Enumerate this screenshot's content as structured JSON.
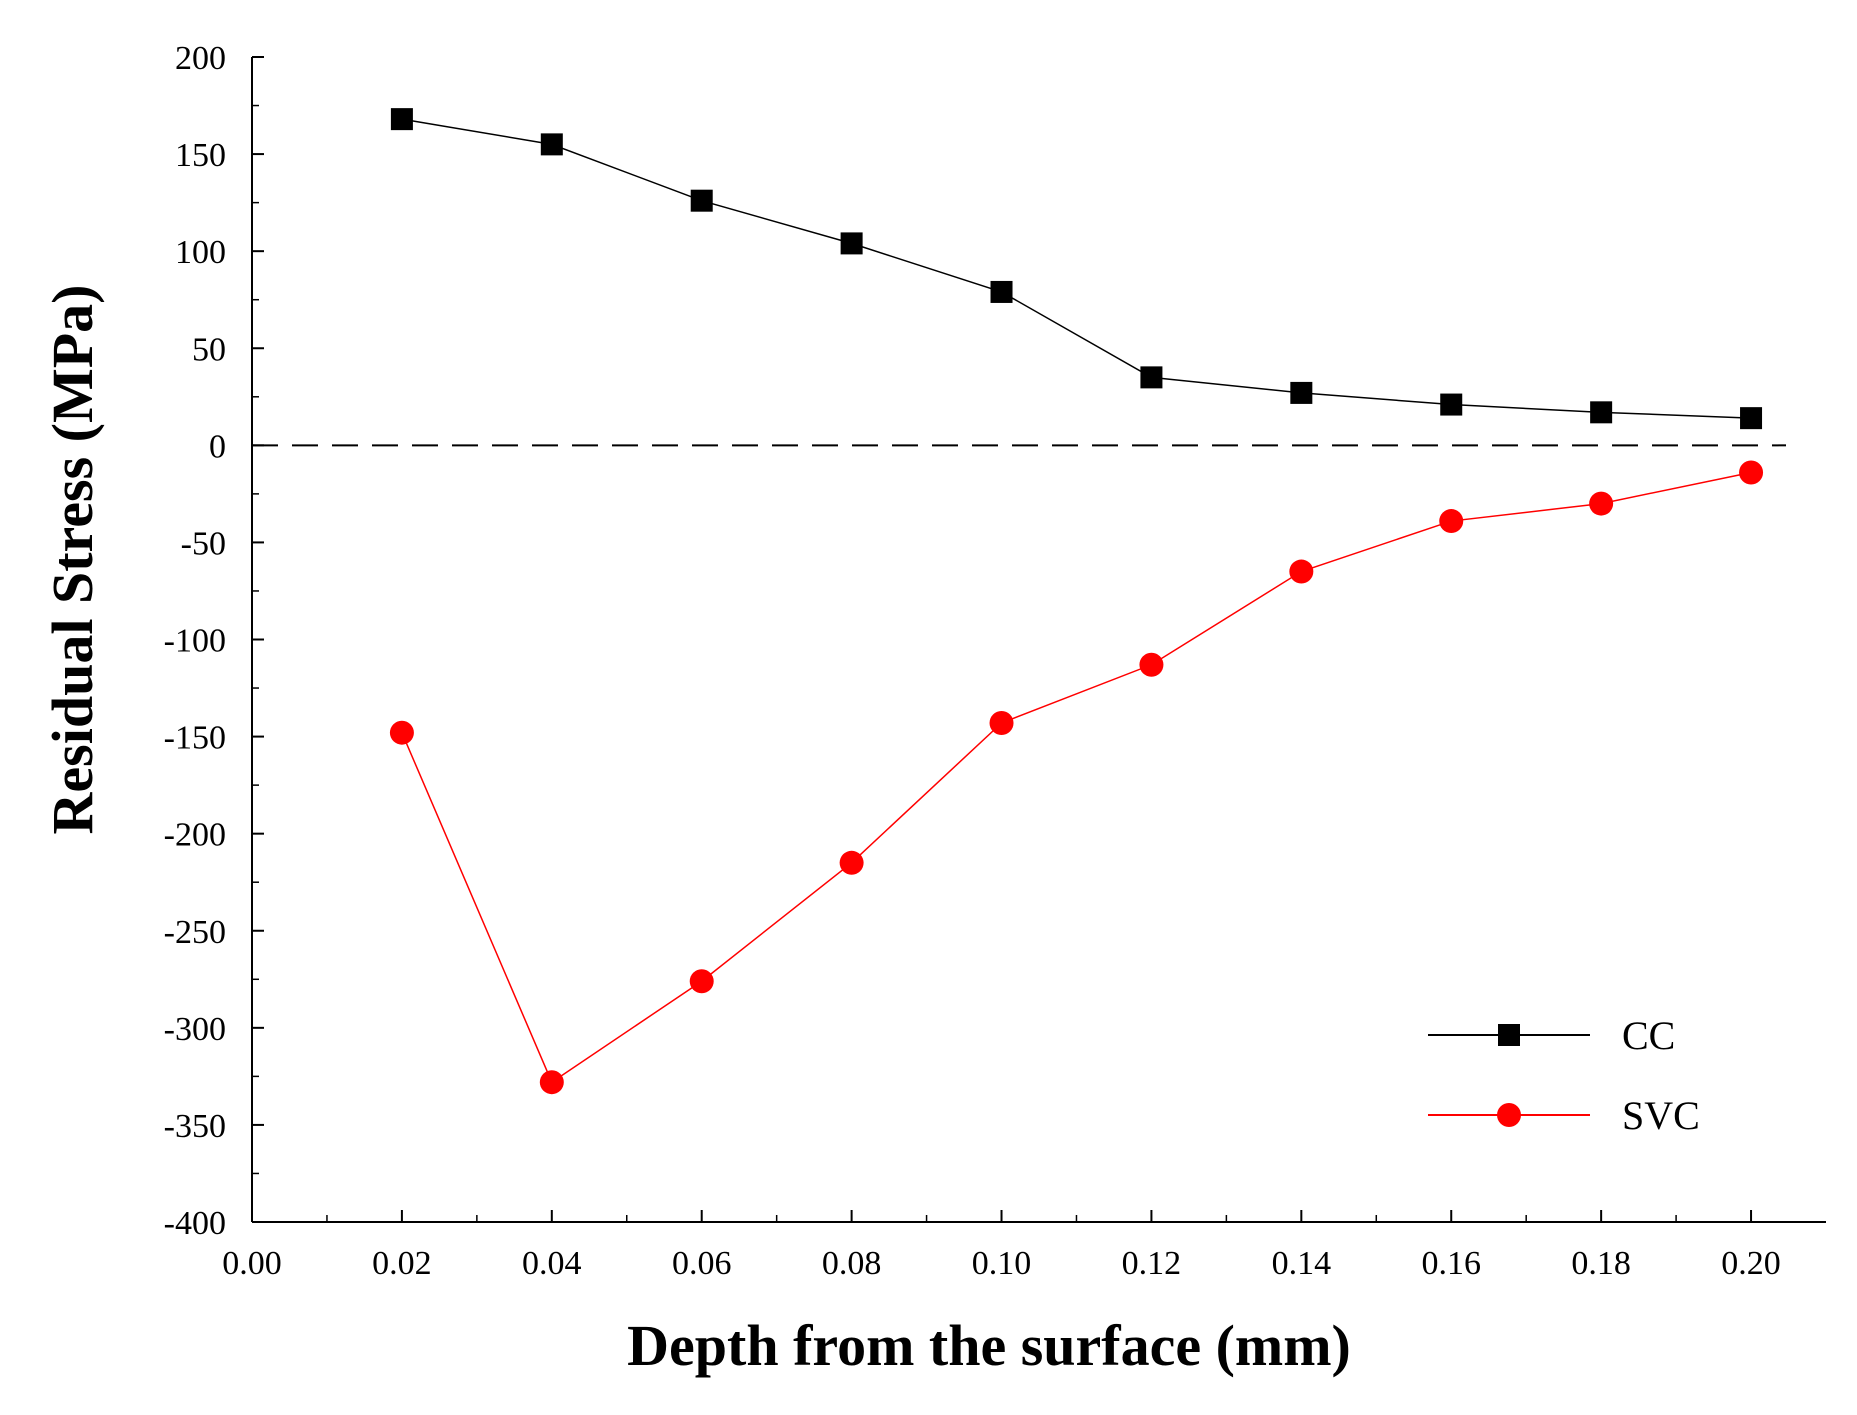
{
  "chart_data": {
    "type": "line",
    "title": "",
    "xlabel": "Depth from the surface (mm)",
    "ylabel": "Residual Stress (MPa)",
    "xlim": [
      0.0,
      0.21
    ],
    "ylim": [
      -400,
      200
    ],
    "x_ticks": [
      0.0,
      0.02,
      0.04,
      0.06,
      0.08,
      0.1,
      0.12,
      0.14,
      0.16,
      0.18,
      0.2
    ],
    "x_tick_labels": [
      "0.00",
      "0.02",
      "0.04",
      "0.06",
      "0.08",
      "0.10",
      "0.12",
      "0.14",
      "0.16",
      "0.18",
      "0.20"
    ],
    "y_ticks": [
      200,
      150,
      100,
      50,
      0,
      -50,
      -100,
      -150,
      -200,
      -250,
      -300,
      -350,
      -400
    ],
    "y_tick_labels": [
      "200",
      "150",
      "100",
      "50",
      "0",
      "-50",
      "-100",
      "-150",
      "-200",
      "-250",
      "-300",
      "-350",
      "-400"
    ],
    "reference_line": {
      "y": 0,
      "style": "dashed",
      "color": "#000000"
    },
    "grid": false,
    "legend_position": "bottom-right",
    "x": [
      0.02,
      0.04,
      0.06,
      0.08,
      0.1,
      0.12,
      0.14,
      0.16,
      0.18,
      0.2
    ],
    "series": [
      {
        "name": "CC",
        "color": "#000000",
        "marker": "square",
        "values": [
          168,
          155,
          126,
          104,
          79,
          35,
          27,
          21,
          17,
          14
        ]
      },
      {
        "name": "SVC",
        "color": "#ff0000",
        "marker": "circle",
        "values": [
          -148,
          -328,
          -276,
          -215,
          -143,
          -113,
          -65,
          -39,
          -30,
          -14
        ]
      }
    ]
  }
}
